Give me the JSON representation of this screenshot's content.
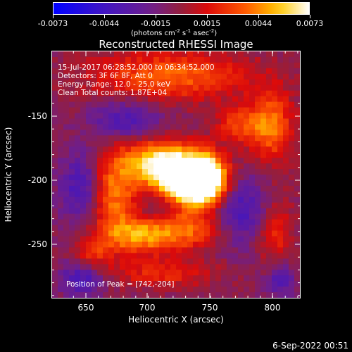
{
  "colorbar": {
    "tick_labels": [
      "-0.0073",
      "-0.0044",
      "-0.0015",
      "0.0015",
      "0.0044",
      "0.0073"
    ],
    "units_text": "(photons cm",
    "units_exp1": "-2",
    "units_mid": " s",
    "units_exp2": "-1",
    "units_mid2": " asec",
    "units_exp3": "-2",
    "units_end": ")"
  },
  "title": "Reconstructed RHESSI Image",
  "info": {
    "time": "15-Jul-2017 06:28:52.000 to 06:34:52.000",
    "detectors": "Detectors: 3F 6F 8F, Att 0",
    "energy": "Energy Range: 12.0 - 25.0 keV",
    "clean": "Clean     Total counts: 1.87E+04",
    "peak": "Position of Peak = [742,-204]"
  },
  "axes": {
    "xlabel": "Heliocentric X (arcsec)",
    "ylabel": "Heliocentric Y (arcsec)",
    "xticks": [
      "650",
      "700",
      "750",
      "800"
    ],
    "yticks": [
      "-150",
      "-200",
      "-250"
    ]
  },
  "datestamp": "6-Sep-2022 00:51",
  "colors": {
    "background": "#000000",
    "foreground": "#ffffff"
  }
}
